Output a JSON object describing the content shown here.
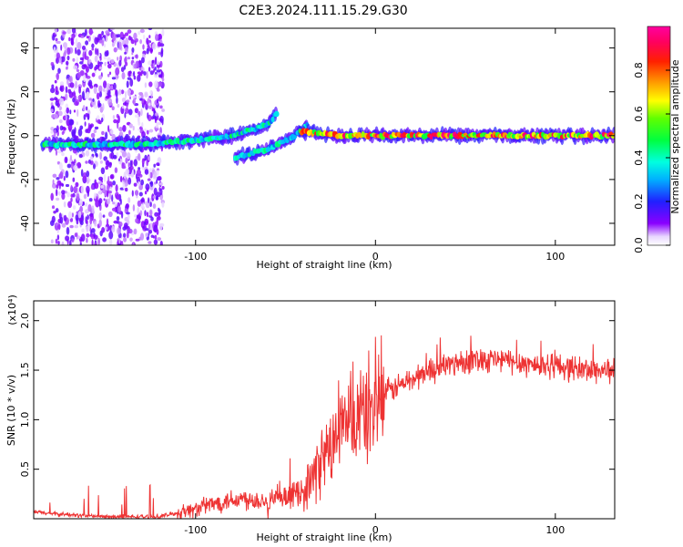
{
  "figure_title": "C2E3.2024.111.15.29.G30",
  "chart_data": [
    {
      "type": "heatmap",
      "title": "",
      "xlabel": "Height of straight line (km)",
      "ylabel": "Frequency (Hz)",
      "xlim": [
        -190,
        133
      ],
      "ylim": [
        -50,
        49
      ],
      "x_ticks": [
        -100,
        0,
        100
      ],
      "y_ticks": [
        -40,
        -20,
        0,
        20,
        40
      ],
      "colorbar": {
        "label": "Normalized spectral amplitude",
        "range": [
          0,
          1
        ],
        "ticks": [
          0.0,
          0.2,
          0.4,
          0.6,
          0.8
        ],
        "colormap": "rainbow (white-violet-blue-cyan-green-yellow-red-magenta)"
      },
      "features": [
        {
          "name": "broadband noise",
          "x_range": [
            -180,
            -118
          ],
          "y_range": [
            -50,
            49
          ],
          "amplitude": 0.1
        },
        {
          "name": "rising trace",
          "x": [
            -185,
            -125,
            -100,
            -80,
            -60,
            -55
          ],
          "y": [
            -4,
            -4,
            -2,
            0,
            5,
            10
          ],
          "amplitude": 0.45
        },
        {
          "name": "lower branch",
          "x": [
            -78,
            -60,
            -45,
            -38
          ],
          "y": [
            -10,
            -6,
            0,
            5
          ],
          "amplitude": 0.4
        },
        {
          "name": "central line",
          "x": [
            -42,
            -20,
            0,
            50,
            133
          ],
          "y": [
            2,
            0,
            0,
            0,
            0
          ],
          "amplitude": 0.85
        }
      ]
    },
    {
      "type": "line",
      "title": "",
      "xlabel": "Height of straight line (km)",
      "ylabel": "SNR (10 * v/v)",
      "y_multiplier": "(x10⁴)",
      "xlim": [
        -190,
        133
      ],
      "ylim": [
        0,
        2.2
      ],
      "x_ticks": [
        -100,
        0,
        100
      ],
      "y_ticks": [
        0.5,
        1.0,
        1.5,
        2.0
      ],
      "y_tick_labels": [
        "0.5",
        "1.0",
        "1.5",
        "2.0"
      ],
      "series": [
        {
          "name": "",
          "color": "#ee3333",
          "x": [
            -190,
            -180,
            -170,
            -160,
            -150,
            -140,
            -130,
            -120,
            -110,
            -100,
            -90,
            -80,
            -70,
            -60,
            -50,
            -45,
            -40,
            -35,
            -30,
            -25,
            -20,
            -15,
            -10,
            -5,
            0,
            5,
            10,
            20,
            30,
            40,
            50,
            60,
            70,
            80,
            90,
            100,
            110,
            120,
            133
          ],
          "y": [
            0.07,
            0.05,
            0.04,
            0.03,
            0.02,
            0.02,
            0.02,
            0.02,
            0.06,
            0.1,
            0.15,
            0.2,
            0.2,
            0.18,
            0.2,
            0.25,
            0.3,
            0.4,
            0.6,
            0.7,
            0.9,
            0.95,
            1.0,
            1.1,
            1.15,
            1.25,
            1.32,
            1.4,
            1.5,
            1.55,
            1.6,
            1.62,
            1.6,
            1.58,
            1.55,
            1.55,
            1.52,
            1.5,
            1.5
          ]
        }
      ]
    }
  ]
}
